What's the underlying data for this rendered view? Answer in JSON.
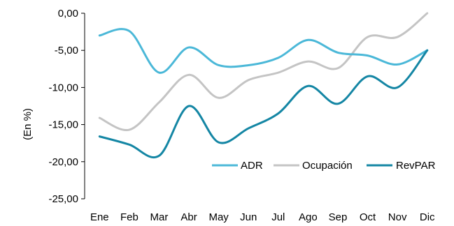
{
  "chart_data": {
    "type": "line",
    "title": "",
    "xlabel": "",
    "ylabel": "(En %)",
    "ylim": [
      -25,
      0
    ],
    "yticks": [
      0,
      -5,
      -10,
      -15,
      -20,
      -25
    ],
    "ytick_labels": [
      "0,00",
      "-5,00",
      "-10,00",
      "-15,00",
      "-20,00",
      "-25,00"
    ],
    "grid": false,
    "legend_position": "bottom-right, inside plot",
    "categories": [
      "Ene",
      "Feb",
      "Mar",
      "Abr",
      "May",
      "Jun",
      "Jul",
      "Ago",
      "Sep",
      "Oct",
      "Nov",
      "Dic"
    ],
    "series": [
      {
        "name": "ADR",
        "color": "#4bb8d8",
        "values": [
          -3.0,
          -2.4,
          -8.0,
          -4.6,
          -7.0,
          -7.0,
          -6.0,
          -3.6,
          -5.3,
          -5.7,
          -6.9,
          -5.0
        ]
      },
      {
        "name": "Ocupación",
        "color": "#c4c4c4",
        "values": [
          -14.1,
          -15.7,
          -12.0,
          -8.3,
          -11.4,
          -9.0,
          -8.0,
          -6.5,
          -7.4,
          -3.2,
          -3.2,
          0.0
        ]
      },
      {
        "name": "RevPAR",
        "color": "#1486a4",
        "values": [
          -16.6,
          -17.7,
          -19.2,
          -12.5,
          -17.4,
          -15.5,
          -13.5,
          -9.8,
          -12.2,
          -8.5,
          -10.0,
          -5.0
        ]
      }
    ]
  }
}
